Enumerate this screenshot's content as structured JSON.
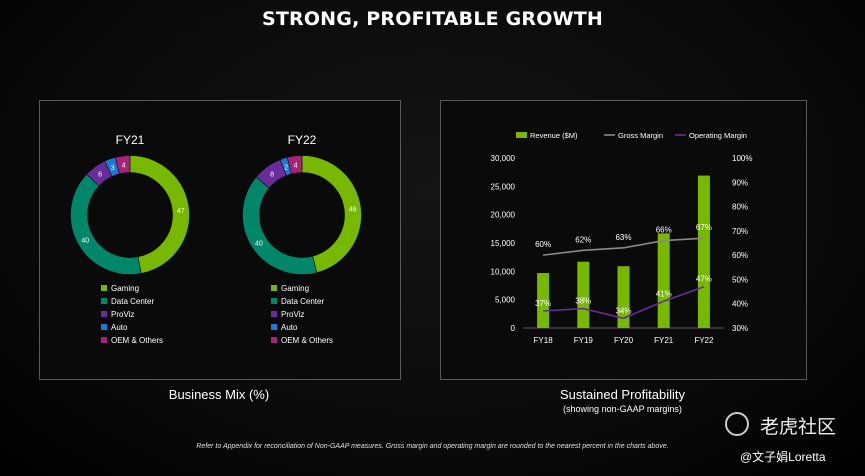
{
  "title": "STRONG, PROFITABLE GROWTH",
  "footnote": "Refer to Appendix for reconciliation of Non-GAAP measures. Gross margin and operating margin are rounded to the nearest percent in the charts above.",
  "left_caption": "Business Mix (%)",
  "right_caption": "Sustained Profitability",
  "right_subcaption": "(showing non-GAAP margins)",
  "watermark": {
    "brand": "老虎社区",
    "user": "@文子娟Loretta"
  },
  "chart_data": [
    {
      "type": "pie",
      "title": "FY21",
      "donut": true,
      "categories": [
        "Gaming",
        "Data Center",
        "ProViz",
        "Auto",
        "OEM & Others"
      ],
      "values": [
        47,
        40,
        6,
        3,
        4
      ],
      "colors": [
        "#76b900",
        "#00876a",
        "#6a2c9a",
        "#1f78d1",
        "#a6237a"
      ]
    },
    {
      "type": "pie",
      "title": "FY22",
      "donut": true,
      "categories": [
        "Gaming",
        "Data Center",
        "ProViz",
        "Auto",
        "OEM & Others"
      ],
      "values": [
        46,
        40,
        8,
        2,
        4
      ],
      "colors": [
        "#76b900",
        "#00876a",
        "#6a2c9a",
        "#1f78d1",
        "#a6237a"
      ]
    },
    {
      "type": "bar",
      "categories": [
        "FY18",
        "FY19",
        "FY20",
        "FY21",
        "FY22"
      ],
      "series": [
        {
          "name": "Revenue ($M)",
          "type": "bar",
          "axis": "left",
          "color": "#76b900",
          "values": [
            9700,
            11700,
            10900,
            16700,
            26900
          ]
        },
        {
          "name": "Gross Margin",
          "type": "line",
          "axis": "right",
          "color": "#8a8a8a",
          "values": [
            60,
            62,
            63,
            66,
            67
          ],
          "labels": [
            "60%",
            "62%",
            "63%",
            "66%",
            "67%"
          ]
        },
        {
          "name": "Operating Margin",
          "type": "line",
          "axis": "right",
          "color": "#6a2c9a",
          "values": [
            37,
            38,
            34,
            41,
            47
          ],
          "labels": [
            "37%",
            "38%",
            "34%",
            "41%",
            "47%"
          ]
        }
      ],
      "ylim": [
        0,
        30000
      ],
      "yticks": [
        "0",
        "5,000",
        "10,000",
        "15,000",
        "20,000",
        "25,000",
        "30,000"
      ],
      "y2lim": [
        30,
        100
      ],
      "y2ticks": [
        "30%",
        "40%",
        "50%",
        "60%",
        "70%",
        "80%",
        "90%",
        "100%"
      ],
      "legend_position": "top",
      "grid": false
    }
  ]
}
